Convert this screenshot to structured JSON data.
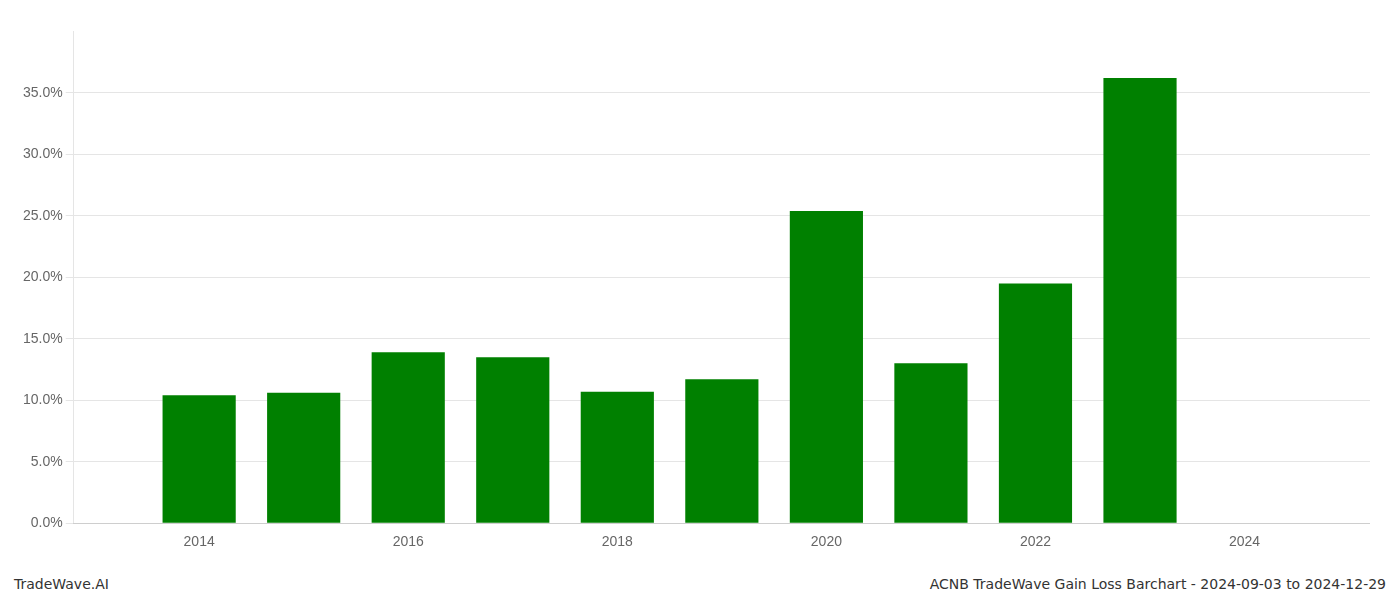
{
  "chart_data": {
    "type": "bar",
    "x": [
      2014,
      2015,
      2016,
      2017,
      2018,
      2019,
      2020,
      2021,
      2022,
      2023
    ],
    "values": [
      0.104,
      0.106,
      0.139,
      0.135,
      0.107,
      0.117,
      0.254,
      0.13,
      0.195,
      0.362
    ],
    "color": "#008000",
    "xlim": [
      2012.8,
      2025.2
    ],
    "xticks": [
      2014,
      2016,
      2018,
      2020,
      2022,
      2024
    ],
    "ylim": [
      0,
      0.4
    ],
    "yticks": [
      {
        "value": 0.0,
        "label": "0.0%"
      },
      {
        "value": 0.05,
        "label": "5.0%"
      },
      {
        "value": 0.1,
        "label": "10.0%"
      },
      {
        "value": 0.15,
        "label": "15.0%"
      },
      {
        "value": 0.2,
        "label": "20.0%"
      },
      {
        "value": 0.25,
        "label": "25.0%"
      },
      {
        "value": 0.3,
        "label": "30.0%"
      },
      {
        "value": 0.35,
        "label": "35.0%"
      }
    ],
    "grid": "y",
    "annotations": [
      "TradeWave.AI",
      "ACNB TradeWave Gain Loss Barchart - 2024-09-03 to 2024-12-29"
    ]
  }
}
